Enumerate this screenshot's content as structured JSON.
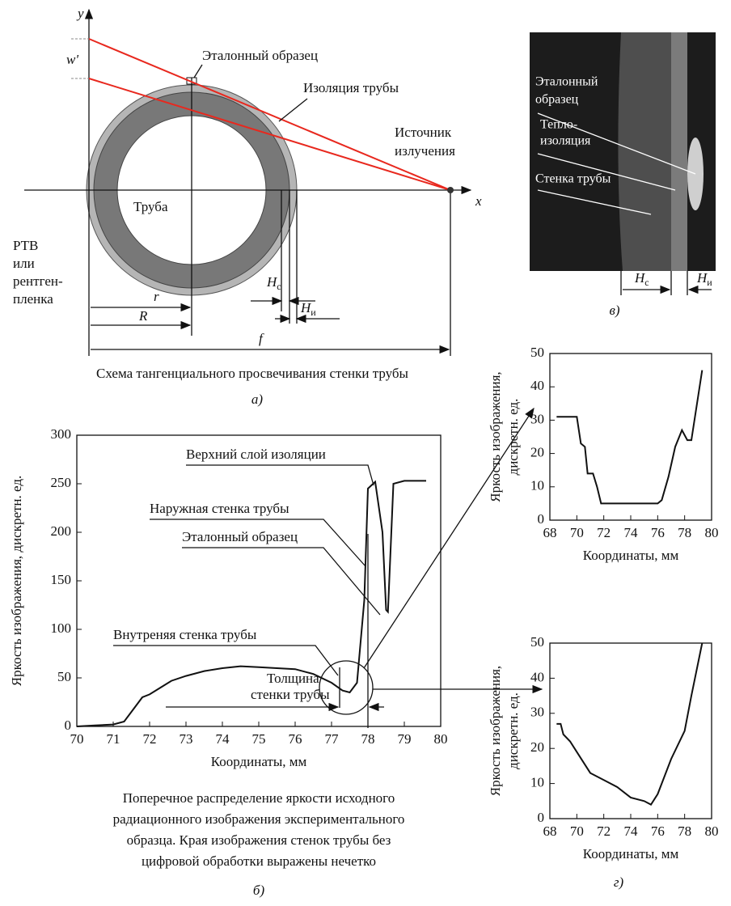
{
  "diagram_a": {
    "y_axis": "y",
    "x_axis": "x",
    "w": "w'",
    "etalon": "Эталонный образец",
    "insulation": "Изоляция трубы",
    "source": [
      "Источник",
      "излучения"
    ],
    "pipe": "Труба",
    "film": [
      "РТВ",
      "или",
      "рентген-",
      "пленка"
    ],
    "r": "r",
    "R": "R",
    "hc": [
      "H",
      "с"
    ],
    "hi": [
      "H",
      "и"
    ],
    "f": "f",
    "caption": "Схема тангенциального просвечивания стенки трубы",
    "label": "а)"
  },
  "panel_v": {
    "texts": [
      "Эталонный",
      "образец",
      "Тепло-",
      "изоляция",
      "Стенка трубы"
    ],
    "hc": [
      "H",
      "с"
    ],
    "hi": [
      "H",
      "и"
    ],
    "label": "в)"
  },
  "panel_b": {
    "caption": [
      "Поперечное распределение яркости исходного",
      "радиационного изображения экспериментального",
      "образца. Края изображения стенок трубы без",
      "цифровой обработки выражены нечетко"
    ],
    "label": "б)"
  },
  "panel_g": {
    "label": "г)"
  },
  "chart_data": [
    {
      "type": "line",
      "color": "#111111",
      "xlabel": "Координаты, мм",
      "ylabel": [
        "Яркость изображения, дискретн. ед."
      ],
      "x": [
        70,
        70.5,
        71,
        71.3,
        71.6,
        71.8,
        72,
        72.3,
        72.6,
        73,
        73.5,
        74,
        74.5,
        75,
        75.5,
        76,
        76.5,
        77,
        77.3,
        77.5,
        77.7,
        77.9,
        78,
        78.2,
        78.4,
        78.5,
        78.55,
        78.7,
        79,
        79.6
      ],
      "values": [
        0,
        1,
        2,
        5,
        20,
        30,
        33,
        40,
        47,
        52,
        57,
        60,
        62,
        61,
        60,
        59,
        54,
        45,
        37,
        35,
        45,
        130,
        245,
        252,
        200,
        120,
        118,
        250,
        253,
        253
      ],
      "xlim": [
        70,
        80
      ],
      "ylim": [
        0,
        300
      ],
      "xticks": [
        70,
        71,
        72,
        73,
        74,
        75,
        76,
        77,
        78,
        79,
        80
      ],
      "yticks": [
        0,
        50,
        100,
        150,
        200,
        250,
        300
      ],
      "annotations": [
        "Верхний слой изоляции",
        "Наружная стенка трубы",
        "Эталонный образец",
        "Внутреняя стенка трубы",
        "Толщина",
        "стенки трубы"
      ]
    },
    {
      "type": "line",
      "color": "#111111",
      "xlabel": "Координаты, мм",
      "ylabel": [
        "Яркость изображения,",
        "дискретн. ед."
      ],
      "x": [
        68.5,
        69.5,
        70,
        70.3,
        70.6,
        70.8,
        71.2,
        71.5,
        71.8,
        72,
        76,
        76.3,
        76.8,
        77.3,
        77.8,
        78.2,
        78.5,
        79.3
      ],
      "values": [
        31,
        31,
        31,
        23,
        22,
        14,
        14,
        10,
        5,
        5,
        5,
        6,
        13,
        22,
        27,
        24,
        24,
        45
      ],
      "xlim": [
        68,
        80
      ],
      "ylim": [
        0,
        50
      ],
      "xticks": [
        68,
        70,
        72,
        74,
        76,
        78,
        80
      ],
      "yticks": [
        0,
        10,
        20,
        30,
        40,
        50
      ]
    },
    {
      "type": "line",
      "color": "#111111",
      "xlabel": "Координаты, мм",
      "ylabel": [
        "Яркость изображения,",
        "дискретн. ед."
      ],
      "x": [
        68.5,
        68.8,
        69,
        69.5,
        70,
        71,
        72,
        73,
        74,
        75,
        75.5,
        76,
        77,
        78,
        78.5,
        79.3
      ],
      "values": [
        27,
        27,
        24,
        22,
        19,
        13,
        11,
        9,
        6,
        5,
        4,
        7,
        17,
        25,
        35,
        50
      ],
      "xlim": [
        68,
        80
      ],
      "ylim": [
        0,
        50
      ],
      "xticks": [
        68,
        70,
        72,
        74,
        76,
        78,
        80
      ],
      "yticks": [
        0,
        10,
        20,
        30,
        40,
        50
      ]
    }
  ]
}
